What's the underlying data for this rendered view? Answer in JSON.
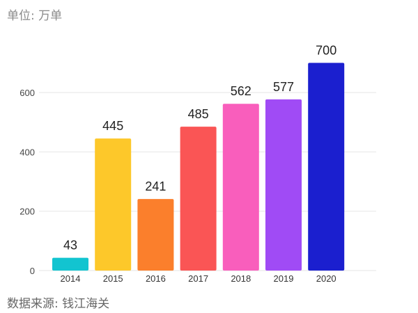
{
  "chart_data": {
    "type": "bar",
    "title": "",
    "unit_label": "单位: 万单",
    "source": "数据来源: 钱江海关",
    "categories": [
      "2014",
      "2015",
      "2016",
      "2017",
      "2018",
      "2019",
      "2020"
    ],
    "values": [
      43,
      445,
      241,
      485,
      562,
      577,
      700
    ],
    "colors": [
      "#12c4d0",
      "#fdc82a",
      "#fb7f2c",
      "#fa5555",
      "#f95ebc",
      "#a04bf5",
      "#1b1fcf"
    ],
    "ylim": [
      0,
      700
    ],
    "yticks": [
      0,
      200,
      400,
      600
    ],
    "grid": true,
    "xlabel": "",
    "ylabel": ""
  }
}
